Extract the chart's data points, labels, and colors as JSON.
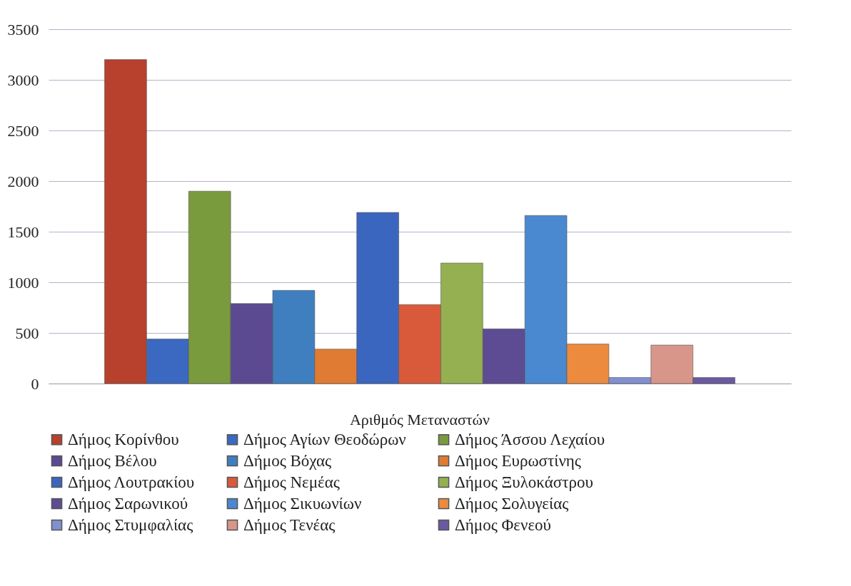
{
  "chart_data": {
    "type": "bar",
    "categories": [
      "Αριθμός Μεταναστών"
    ],
    "series": [
      {
        "name": "Δήμος Κορίνθου",
        "color": "#b7412c",
        "values": [
          3200
        ]
      },
      {
        "name": "Δήμος Αγίων Θεοδώρων",
        "color": "#3b68c0",
        "values": [
          440
        ]
      },
      {
        "name": "Δήμος Άσσου Λεχαίου",
        "color": "#7a9a3e",
        "values": [
          1900
        ]
      },
      {
        "name": "Δήμος Βέλου",
        "color": "#5b4a92",
        "values": [
          790
        ]
      },
      {
        "name": "Δήμος Βόχας",
        "color": "#3f7fc0",
        "values": [
          920
        ]
      },
      {
        "name": "Δήμος Ευρωστίνης",
        "color": "#e07b33",
        "values": [
          340
        ]
      },
      {
        "name": "Δήμος Λουτρακίου",
        "color": "#3a66c0",
        "values": [
          1690
        ]
      },
      {
        "name": "Δήμος Νεμέας",
        "color": "#d85a3a",
        "values": [
          780
        ]
      },
      {
        "name": "Δήμος Ξυλοκάστρου",
        "color": "#95b050",
        "values": [
          1190
        ]
      },
      {
        "name": "Δήμος Σαρωνικού",
        "color": "#5d4b94",
        "values": [
          540
        ]
      },
      {
        "name": "Δήμος Σικυωνίων",
        "color": "#4a88d0",
        "values": [
          1660
        ]
      },
      {
        "name": "Δήμος Σολυγείας",
        "color": "#ec8a3e",
        "values": [
          390
        ]
      },
      {
        "name": "Δήμος Στυμφαλίας",
        "color": "#8090d0",
        "values": [
          60
        ]
      },
      {
        "name": "Δήμος Τενέας",
        "color": "#d8968a",
        "values": [
          380
        ]
      },
      {
        "name": "Δήμος Φενεού",
        "color": "#6a5aa0",
        "values": [
          60
        ]
      }
    ],
    "ylim": [
      0,
      3500
    ],
    "yticks": [
      0,
      500,
      1000,
      1500,
      2000,
      2500,
      3000,
      3500
    ],
    "grid": "y",
    "legend": "bottom"
  }
}
